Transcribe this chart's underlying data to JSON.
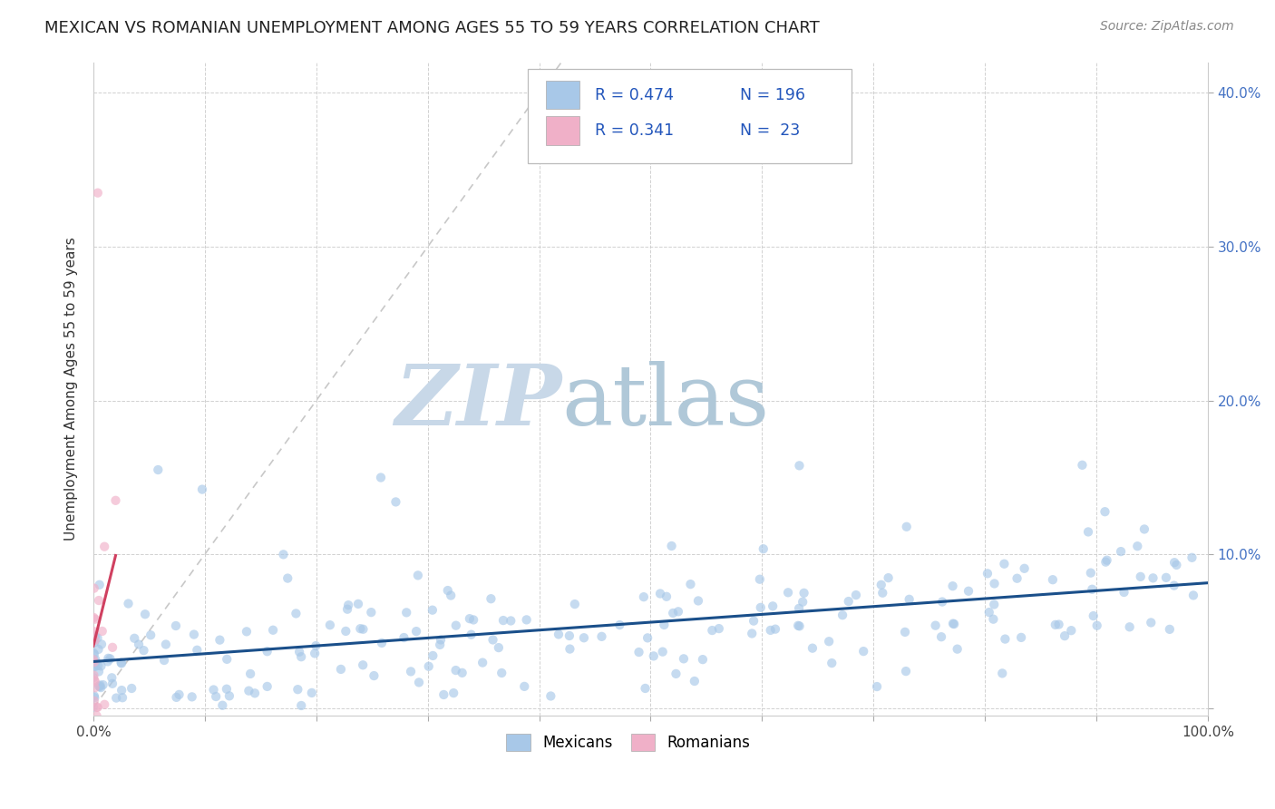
{
  "title": "MEXICAN VS ROMANIAN UNEMPLOYMENT AMONG AGES 55 TO 59 YEARS CORRELATION CHART",
  "source": "Source: ZipAtlas.com",
  "ylabel": "Unemployment Among Ages 55 to 59 years",
  "xlim": [
    0,
    1.0
  ],
  "ylim": [
    -0.005,
    0.42
  ],
  "x_ticks": [
    0.0,
    0.1,
    0.2,
    0.3,
    0.4,
    0.5,
    0.6,
    0.7,
    0.8,
    0.9,
    1.0
  ],
  "x_tick_labels": [
    "0.0%",
    "",
    "",
    "",
    "",
    "",
    "",
    "",
    "",
    "",
    "100.0%"
  ],
  "y_ticks": [
    0.0,
    0.1,
    0.2,
    0.3,
    0.4
  ],
  "y_tick_labels": [
    "",
    "10.0%",
    "20.0%",
    "30.0%",
    "40.0%"
  ],
  "mexican_color": "#a8c8e8",
  "romanian_color": "#f0b0c8",
  "mexican_line_color": "#1a4f8a",
  "romanian_line_color": "#d04060",
  "diagonal_color": "#c8c8c8",
  "R_mexican": 0.474,
  "N_mexican": 196,
  "R_romanian": 0.341,
  "N_romanian": 23,
  "watermark_zip_color": "#c8d8e8",
  "watermark_atlas_color": "#b0c8d8",
  "legend_label_mexican": "Mexicans",
  "legend_label_romanian": "Romanians",
  "title_fontsize": 13,
  "axis_label_fontsize": 11,
  "tick_fontsize": 11,
  "source_fontsize": 10,
  "marker_size": 55,
  "marker_alpha": 0.65,
  "legend_R_N_color": "#2255bb",
  "legend_box_edge_color": "#bbbbbb"
}
